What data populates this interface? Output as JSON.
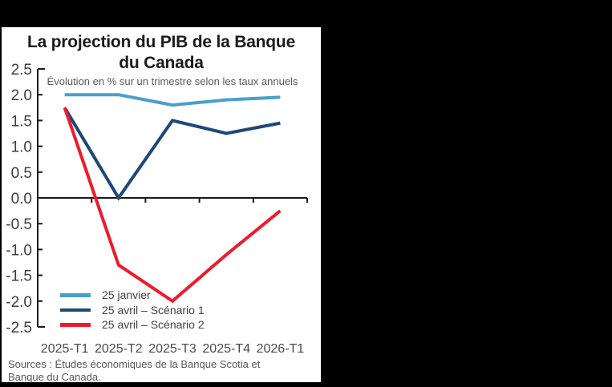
{
  "page": {
    "background": "#000000",
    "panel_background": "#ffffff"
  },
  "chart_data": {
    "type": "line",
    "title": "La projection du PIB de la Banque du Canada",
    "title_lines": [
      "La projection du PIB de la Banque",
      "du Canada"
    ],
    "subtitle": "Évolution en % sur un trimestre selon les taux annuels",
    "categories": [
      "2025-T1",
      "2025-T2",
      "2025-T3",
      "2025-T4",
      "2026-T1"
    ],
    "series": [
      {
        "name": "25 janvier",
        "color": "#489FCD",
        "values": [
          2.0,
          2.0,
          1.8,
          1.9,
          1.95
        ]
      },
      {
        "name": "25 avril – Scénario 1",
        "color": "#1E4876",
        "values": [
          1.75,
          0.0,
          1.5,
          1.25,
          1.45
        ]
      },
      {
        "name": "25 avril – Scénario 2",
        "color": "#EB1C2D",
        "values": [
          1.75,
          -1.3,
          -2.0,
          -1.1,
          -0.25
        ]
      }
    ],
    "ylim": [
      -2.5,
      2.5
    ],
    "ytick_step": 0.5,
    "grid": false,
    "legend_position": "lower-left",
    "axis_color": "#1a1a1a",
    "source": "Sources : Études économiques de la Banque Scotia et Banque du Canada."
  }
}
